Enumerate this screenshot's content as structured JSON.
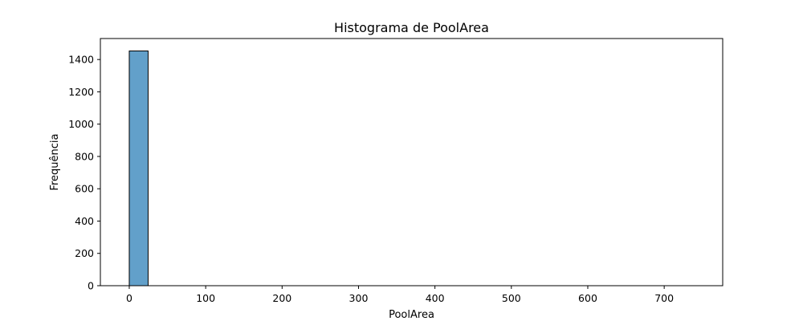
{
  "chart_data": {
    "type": "bar",
    "title": "Histograma de PoolArea",
    "xlabel": "PoolArea",
    "ylabel": "Frequência",
    "xlim": [
      -37.8,
      776.55
    ],
    "ylim": [
      0,
      1530
    ],
    "x_ticks": [
      0,
      100,
      200,
      300,
      400,
      500,
      600,
      700
    ],
    "y_ticks": [
      0,
      200,
      400,
      600,
      800,
      1000,
      1200,
      1400
    ],
    "bins": [
      {
        "x0": 0,
        "x1": 24.67,
        "count": 1453
      },
      {
        "x0": 24.67,
        "x1": 49.33,
        "count": 0
      },
      {
        "x0": 49.33,
        "x1": 74,
        "count": 0
      },
      {
        "x0": 74,
        "x1": 98.67,
        "count": 0
      },
      {
        "x0": 98.67,
        "x1": 123.33,
        "count": 0
      },
      {
        "x0": 123.33,
        "x1": 148,
        "count": 0
      },
      {
        "x0": 148,
        "x1": 172.67,
        "count": 0
      },
      {
        "x0": 172.67,
        "x1": 197.33,
        "count": 0
      },
      {
        "x0": 197.33,
        "x1": 222,
        "count": 0
      },
      {
        "x0": 222,
        "x1": 246.67,
        "count": 0
      },
      {
        "x0": 246.67,
        "x1": 271.33,
        "count": 0
      },
      {
        "x0": 271.33,
        "x1": 296,
        "count": 0
      },
      {
        "x0": 296,
        "x1": 320.67,
        "count": 0
      },
      {
        "x0": 320.67,
        "x1": 345.33,
        "count": 0
      },
      {
        "x0": 345.33,
        "x1": 370,
        "count": 0
      },
      {
        "x0": 370,
        "x1": 394.67,
        "count": 0
      },
      {
        "x0": 394.67,
        "x1": 419.33,
        "count": 0
      },
      {
        "x0": 419.33,
        "x1": 444,
        "count": 0
      },
      {
        "x0": 444,
        "x1": 468.67,
        "count": 0
      },
      {
        "x0": 468.67,
        "x1": 493.33,
        "count": 0
      },
      {
        "x0": 493.33,
        "x1": 518,
        "count": 0
      },
      {
        "x0": 518,
        "x1": 542.67,
        "count": 0
      },
      {
        "x0": 542.67,
        "x1": 567.33,
        "count": 0
      },
      {
        "x0": 567.33,
        "x1": 592,
        "count": 0
      },
      {
        "x0": 592,
        "x1": 616.67,
        "count": 0
      },
      {
        "x0": 616.67,
        "x1": 641.33,
        "count": 0
      },
      {
        "x0": 641.33,
        "x1": 666,
        "count": 0
      },
      {
        "x0": 666,
        "x1": 690.67,
        "count": 0
      },
      {
        "x0": 690.67,
        "x1": 715.33,
        "count": 0
      },
      {
        "x0": 715.33,
        "x1": 740,
        "count": 0
      }
    ],
    "bar_color": "#1f77b4",
    "bar_alpha": 0.7,
    "edge_color": "#000000",
    "grid": false,
    "legend": false
  }
}
